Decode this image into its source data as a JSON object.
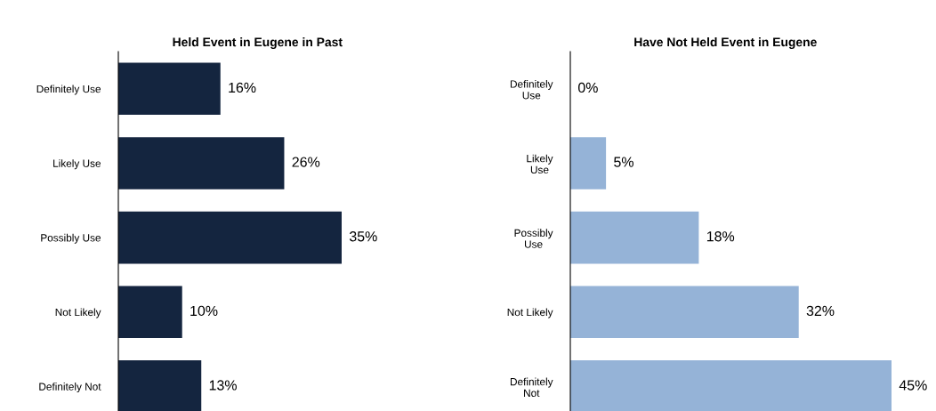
{
  "chart_data": [
    {
      "type": "bar",
      "orientation": "horizontal",
      "title": "Held Event in Eugene in Past",
      "categories": [
        "Definitely Use",
        "Likely Use",
        "Possibly Use",
        "Not Likely",
        "Definitely Not"
      ],
      "values": [
        16,
        26,
        35,
        10,
        13
      ],
      "value_labels": [
        "16%",
        "26%",
        "35%",
        "10%",
        "13%"
      ],
      "color": "#14253f",
      "grid": false,
      "legend": false
    },
    {
      "type": "bar",
      "orientation": "horizontal",
      "title": "Have Not Held Event in Eugene",
      "categories": [
        "Definitely\nUse",
        "Likely\nUse",
        "Possibly\nUse",
        "Not Likely",
        "Definitely\nNot"
      ],
      "values": [
        0,
        5,
        18,
        32,
        45
      ],
      "value_labels": [
        "0%",
        "5%",
        "18%",
        "32%",
        "45%"
      ],
      "color": "#95b3d7",
      "grid": false,
      "legend": false
    }
  ]
}
